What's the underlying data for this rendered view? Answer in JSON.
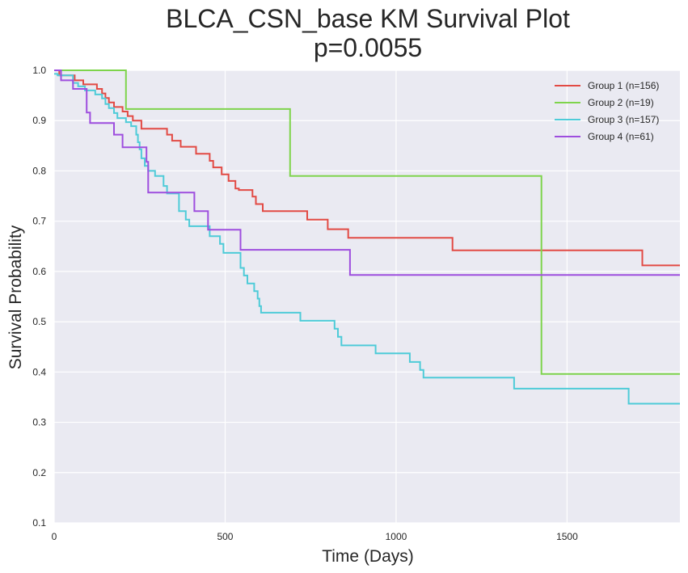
{
  "chart_data": {
    "type": "line",
    "step": true,
    "title": "BLCA_CSN_base KM Survival Plot",
    "subtitle": "p=0.0055",
    "xlabel": "Time (Days)",
    "ylabel": "Survival Probability",
    "xlim": [
      0,
      1830
    ],
    "ylim": [
      0.1,
      1.0
    ],
    "xticks": [
      "0",
      "500",
      "1000",
      "1500"
    ],
    "yticks": [
      "0.1",
      "0.2",
      "0.3",
      "0.4",
      "0.5",
      "0.6",
      "0.7",
      "0.8",
      "0.9",
      "1.0"
    ],
    "grid": true,
    "legend_position": "top-right",
    "series": [
      {
        "name": "Group 1 (n=156)",
        "color": "#e24a44",
        "x": [
          0,
          15,
          60,
          85,
          125,
          140,
          150,
          160,
          175,
          200,
          215,
          230,
          255,
          330,
          345,
          370,
          415,
          455,
          465,
          490,
          510,
          530,
          540,
          580,
          590,
          610,
          740,
          800,
          860,
          1165,
          1720,
          1830
        ],
        "y": [
          1.0,
          0.99,
          0.98,
          0.972,
          0.963,
          0.954,
          0.945,
          0.936,
          0.927,
          0.918,
          0.909,
          0.9,
          0.884,
          0.872,
          0.86,
          0.848,
          0.834,
          0.82,
          0.807,
          0.793,
          0.78,
          0.765,
          0.762,
          0.749,
          0.734,
          0.72,
          0.703,
          0.684,
          0.667,
          0.642,
          0.612,
          0.612
        ]
      },
      {
        "name": "Group 2 (n=19)",
        "color": "#7ed44c",
        "x": [
          0,
          210,
          690,
          1425,
          1830
        ],
        "y": [
          1.0,
          0.923,
          0.79,
          0.396,
          0.396
        ]
      },
      {
        "name": "Group 3 (n=157)",
        "color": "#4ecbd8",
        "x": [
          0,
          10,
          55,
          70,
          90,
          120,
          140,
          150,
          160,
          175,
          185,
          210,
          225,
          240,
          245,
          250,
          255,
          265,
          275,
          295,
          320,
          330,
          365,
          385,
          395,
          455,
          485,
          495,
          545,
          555,
          565,
          585,
          595,
          600,
          605,
          615,
          720,
          820,
          830,
          840,
          940,
          1040,
          1070,
          1080,
          1345,
          1680,
          1830
        ],
        "y": [
          0.993,
          0.99,
          0.975,
          0.968,
          0.96,
          0.952,
          0.944,
          0.933,
          0.925,
          0.915,
          0.905,
          0.897,
          0.889,
          0.872,
          0.857,
          0.843,
          0.825,
          0.81,
          0.8,
          0.79,
          0.77,
          0.755,
          0.72,
          0.703,
          0.69,
          0.67,
          0.655,
          0.637,
          0.607,
          0.592,
          0.576,
          0.561,
          0.546,
          0.531,
          0.518,
          0.518,
          0.502,
          0.486,
          0.47,
          0.453,
          0.437,
          0.42,
          0.404,
          0.389,
          0.367,
          0.337,
          0.337
        ]
      },
      {
        "name": "Group 4 (n=61)",
        "color": "#9e4ede",
        "x": [
          0,
          20,
          55,
          95,
          105,
          175,
          200,
          270,
          275,
          410,
          450,
          545,
          865,
          1830
        ],
        "y": [
          1.0,
          0.98,
          0.963,
          0.916,
          0.895,
          0.872,
          0.847,
          0.818,
          0.757,
          0.72,
          0.683,
          0.643,
          0.593,
          0.593
        ]
      }
    ]
  }
}
